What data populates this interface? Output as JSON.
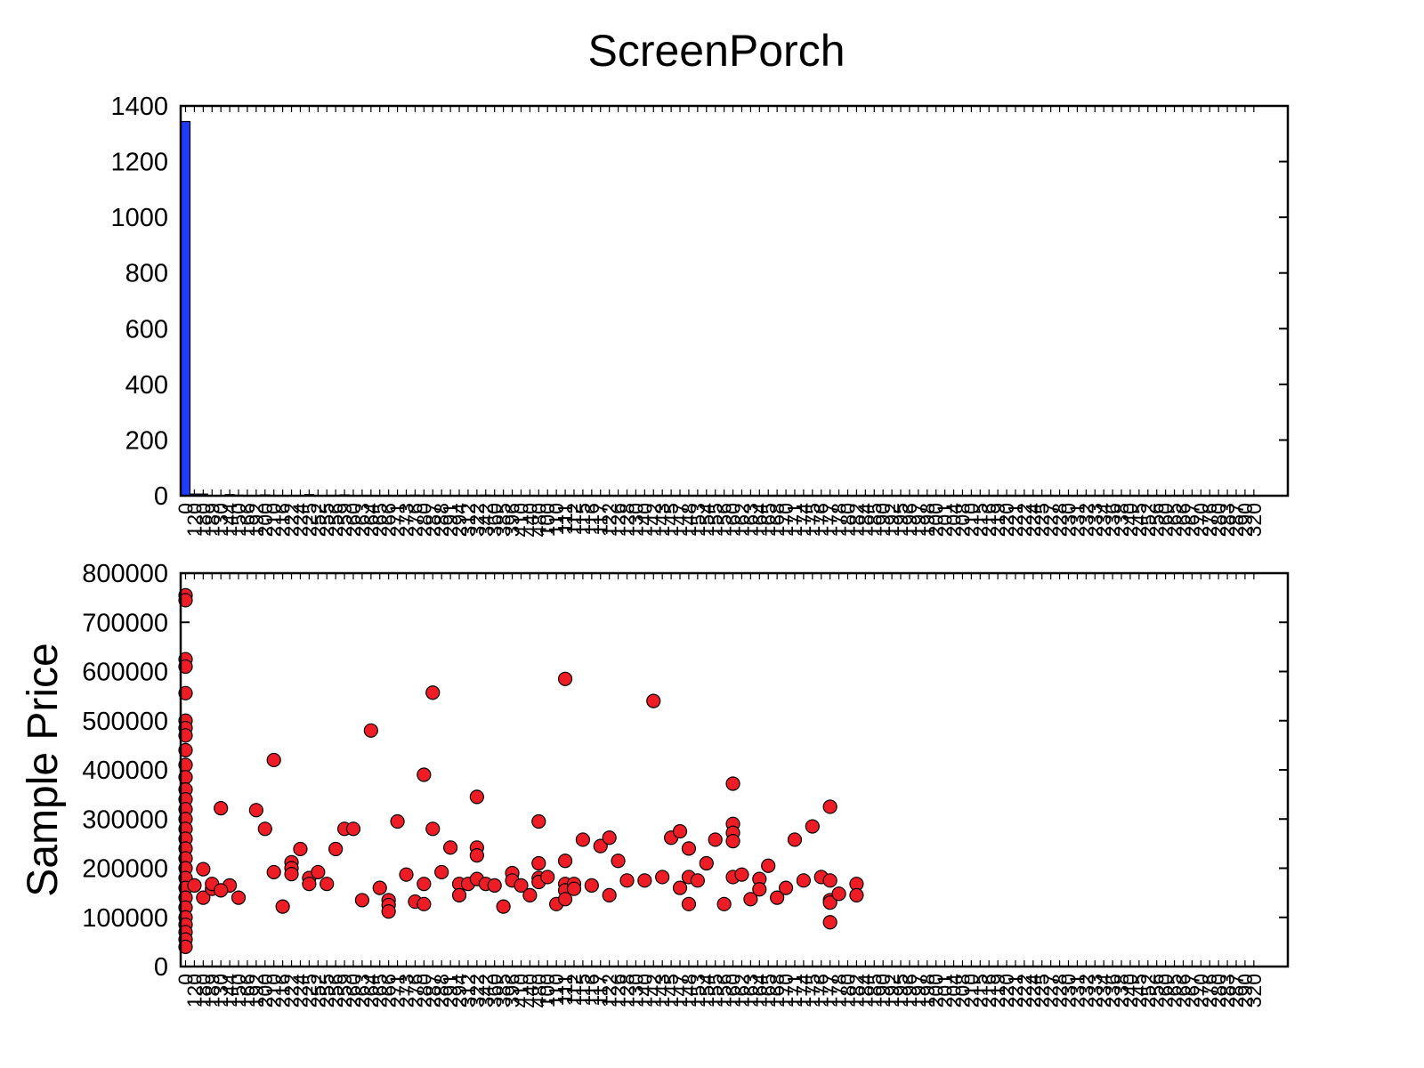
{
  "title": "ScreenPorch",
  "colors": {
    "bar": "#1f3bff",
    "point": "#ee1c25",
    "axis": "#000000"
  },
  "chart_data": [
    {
      "type": "bar",
      "title": "",
      "xlabel": "",
      "ylabel": "",
      "ylim": [
        0,
        1400
      ],
      "yticks": [
        0,
        200,
        400,
        600,
        800,
        1000,
        1200,
        1400
      ],
      "grid": false,
      "legend": "none",
      "categories": [
        "0",
        "120",
        "180",
        "189",
        "130",
        "144",
        "150",
        "166",
        "192",
        "200",
        "210",
        "216",
        "222",
        "224",
        "225",
        "252",
        "255",
        "256",
        "259",
        "260",
        "263",
        "264",
        "265",
        "266",
        "271",
        "273",
        "276",
        "280",
        "287",
        "288",
        "291",
        "294",
        "312",
        "322",
        "342",
        "360",
        "385",
        "396",
        "410",
        "440",
        "480",
        "100",
        "110",
        "111",
        "112",
        "115",
        "116",
        "117",
        "122",
        "126",
        "128",
        "130",
        "140",
        "142",
        "143",
        "145",
        "147",
        "148",
        "153",
        "154",
        "155",
        "156",
        "160",
        "162",
        "163",
        "164",
        "165",
        "168",
        "170",
        "171",
        "174",
        "175",
        "176",
        "177",
        "178",
        "180",
        "182",
        "184",
        "185",
        "190",
        "192",
        "195",
        "196",
        "197",
        "198",
        "200",
        "201",
        "204",
        "208",
        "210",
        "215",
        "216",
        "219",
        "220",
        "221",
        "222",
        "224",
        "225",
        "227",
        "228",
        "230",
        "231",
        "232",
        "233",
        "234",
        "236",
        "238",
        "240",
        "245",
        "252",
        "256",
        "260",
        "265",
        "266",
        "267",
        "270",
        "276",
        "280",
        "283",
        "287",
        "290",
        "320"
      ],
      "values": [
        1344,
        6,
        6,
        1,
        1,
        4,
        2,
        1,
        1,
        3,
        1,
        1,
        1,
        1,
        4,
        1,
        1,
        1,
        3,
        1,
        1,
        1,
        1,
        1,
        1,
        1,
        2,
        1,
        1,
        1,
        1,
        1,
        1,
        1,
        2,
        1,
        1,
        1,
        1,
        1,
        1,
        1,
        1,
        1,
        1,
        1,
        1,
        1,
        1,
        1,
        1,
        1,
        1,
        1,
        1,
        1,
        1,
        1,
        1,
        1,
        1,
        1,
        1,
        1,
        1,
        1,
        1,
        1,
        1,
        1,
        1,
        1,
        1,
        1,
        1,
        1,
        1,
        1,
        1,
        1,
        1,
        1,
        1,
        1,
        1,
        1,
        1,
        1,
        1,
        1,
        1,
        1,
        1,
        1,
        1,
        1,
        1,
        1,
        1,
        1,
        1,
        1,
        1,
        1,
        1,
        1,
        1,
        1,
        1,
        1,
        1,
        1,
        1,
        1,
        1,
        1,
        1,
        1,
        1,
        1,
        1,
        1
      ]
    },
    {
      "type": "scatter",
      "title": "",
      "xlabel": "",
      "ylabel": "Sample Price",
      "ylim": [
        0,
        800000
      ],
      "yticks": [
        0,
        100000,
        200000,
        300000,
        400000,
        500000,
        600000,
        700000,
        800000
      ],
      "grid": false,
      "legend": "none",
      "categories_same_as_bar": true,
      "points": [
        {
          "x": "0",
          "y": 755000
        },
        {
          "x": "0",
          "y": 745000
        },
        {
          "x": "0",
          "y": 625000
        },
        {
          "x": "0",
          "y": 610000
        },
        {
          "x": "0",
          "y": 556000
        },
        {
          "x": "0",
          "y": 500000
        },
        {
          "x": "0",
          "y": 485000
        },
        {
          "x": "0",
          "y": 470000
        },
        {
          "x": "0",
          "y": 440000
        },
        {
          "x": "0",
          "y": 410000
        },
        {
          "x": "0",
          "y": 385000
        },
        {
          "x": "0",
          "y": 360000
        },
        {
          "x": "0",
          "y": 340000
        },
        {
          "x": "0",
          "y": 320000
        },
        {
          "x": "0",
          "y": 300000
        },
        {
          "x": "0",
          "y": 280000
        },
        {
          "x": "0",
          "y": 260000
        },
        {
          "x": "0",
          "y": 240000
        },
        {
          "x": "0",
          "y": 220000
        },
        {
          "x": "0",
          "y": 200000
        },
        {
          "x": "0",
          "y": 180000
        },
        {
          "x": "0",
          "y": 160000
        },
        {
          "x": "0",
          "y": 140000
        },
        {
          "x": "0",
          "y": 120000
        },
        {
          "x": "0",
          "y": 100000
        },
        {
          "x": "0",
          "y": 85000
        },
        {
          "x": "0",
          "y": 70000
        },
        {
          "x": "0",
          "y": 55000
        },
        {
          "x": "0",
          "y": 40000
        },
        {
          "x": "120",
          "y": 165000
        },
        {
          "x": "180",
          "y": 140000
        },
        {
          "x": "189",
          "y": 158000
        },
        {
          "x": "189",
          "y": 168000
        },
        {
          "x": "130",
          "y": 322000
        },
        {
          "x": "144",
          "y": 165000
        },
        {
          "x": "150",
          "y": 140000
        },
        {
          "x": "192",
          "y": 318000
        },
        {
          "x": "200",
          "y": 280000
        },
        {
          "x": "210",
          "y": 420000
        },
        {
          "x": "210",
          "y": 192000
        },
        {
          "x": "216",
          "y": 122000
        },
        {
          "x": "222",
          "y": 212000
        },
        {
          "x": "222",
          "y": 200000
        },
        {
          "x": "222",
          "y": 188000
        },
        {
          "x": "224",
          "y": 239000
        },
        {
          "x": "225",
          "y": 180000
        },
        {
          "x": "225",
          "y": 168000
        },
        {
          "x": "252",
          "y": 192000
        },
        {
          "x": "255",
          "y": 168000
        },
        {
          "x": "256",
          "y": 239000
        },
        {
          "x": "259",
          "y": 280000
        },
        {
          "x": "260",
          "y": 280000
        },
        {
          "x": "263",
          "y": 135000
        },
        {
          "x": "264",
          "y": 480000
        },
        {
          "x": "265",
          "y": 160000
        },
        {
          "x": "266",
          "y": 135000
        },
        {
          "x": "266",
          "y": 125000
        },
        {
          "x": "266",
          "y": 112000
        },
        {
          "x": "271",
          "y": 295000
        },
        {
          "x": "273",
          "y": 187000
        },
        {
          "x": "276",
          "y": 132000
        },
        {
          "x": "280",
          "y": 390000
        },
        {
          "x": "280",
          "y": 168000
        },
        {
          "x": "280",
          "y": 127000
        },
        {
          "x": "287",
          "y": 557000
        },
        {
          "x": "287",
          "y": 280000
        },
        {
          "x": "288",
          "y": 192000
        },
        {
          "x": "291",
          "y": 242000
        },
        {
          "x": "294",
          "y": 168000
        },
        {
          "x": "294",
          "y": 145000
        },
        {
          "x": "312",
          "y": 168000
        },
        {
          "x": "322",
          "y": 345000
        },
        {
          "x": "322",
          "y": 242000
        },
        {
          "x": "322",
          "y": 226000
        },
        {
          "x": "322",
          "y": 178000
        },
        {
          "x": "342",
          "y": 168000
        },
        {
          "x": "360",
          "y": 165000
        },
        {
          "x": "385",
          "y": 122000
        },
        {
          "x": "396",
          "y": 190000
        },
        {
          "x": "396",
          "y": 175000
        },
        {
          "x": "410",
          "y": 165000
        },
        {
          "x": "440",
          "y": 145000
        },
        {
          "x": "480",
          "y": 295000
        },
        {
          "x": "480",
          "y": 210000
        },
        {
          "x": "480",
          "y": 180000
        },
        {
          "x": "480",
          "y": 172000
        },
        {
          "x": "100",
          "y": 182000
        },
        {
          "x": "110",
          "y": 127000
        },
        {
          "x": "111",
          "y": 585000
        },
        {
          "x": "111",
          "y": 215000
        },
        {
          "x": "111",
          "y": 168000
        },
        {
          "x": "111",
          "y": 155000
        },
        {
          "x": "111",
          "y": 137000
        },
        {
          "x": "112",
          "y": 168000
        },
        {
          "x": "112",
          "y": 158000
        },
        {
          "x": "115",
          "y": 258000
        },
        {
          "x": "116",
          "y": 165000
        },
        {
          "x": "117",
          "y": 245000
        },
        {
          "x": "122",
          "y": 262000
        },
        {
          "x": "122",
          "y": 145000
        },
        {
          "x": "126",
          "y": 215000
        },
        {
          "x": "128",
          "y": 175000
        },
        {
          "x": "130",
          "y": 155000
        },
        {
          "x": "140",
          "y": 175000
        },
        {
          "x": "142",
          "y": 540000
        },
        {
          "x": "143",
          "y": 182000
        },
        {
          "x": "145",
          "y": 262000
        },
        {
          "x": "147",
          "y": 275000
        },
        {
          "x": "147",
          "y": 160000
        },
        {
          "x": "148",
          "y": 240000
        },
        {
          "x": "148",
          "y": 182000
        },
        {
          "x": "148",
          "y": 127000
        },
        {
          "x": "153",
          "y": 175000
        },
        {
          "x": "154",
          "y": 210000
        },
        {
          "x": "155",
          "y": 258000
        },
        {
          "x": "156",
          "y": 127000
        },
        {
          "x": "160",
          "y": 372000
        },
        {
          "x": "160",
          "y": 290000
        },
        {
          "x": "160",
          "y": 272000
        },
        {
          "x": "160",
          "y": 255000
        },
        {
          "x": "160",
          "y": 182000
        },
        {
          "x": "162",
          "y": 187000
        },
        {
          "x": "163",
          "y": 137000
        },
        {
          "x": "164",
          "y": 178000
        },
        {
          "x": "164",
          "y": 157000
        },
        {
          "x": "165",
          "y": 205000
        },
        {
          "x": "168",
          "y": 140000
        },
        {
          "x": "170",
          "y": 160000
        },
        {
          "x": "171",
          "y": 258000
        },
        {
          "x": "174",
          "y": 175000
        },
        {
          "x": "175",
          "y": 285000
        },
        {
          "x": "176",
          "y": 182000
        },
        {
          "x": "177",
          "y": 325000
        },
        {
          "x": "177",
          "y": 175000
        },
        {
          "x": "177",
          "y": 135000
        },
        {
          "x": "177",
          "y": 130000
        },
        {
          "x": "177",
          "y": 90000
        },
        {
          "x": "178",
          "y": 148000
        },
        {
          "x": "180",
          "y": 198000
        },
        {
          "x": "182",
          "y": 168000
        },
        {
          "x": "182",
          "y": 145000
        }
      ]
    }
  ]
}
